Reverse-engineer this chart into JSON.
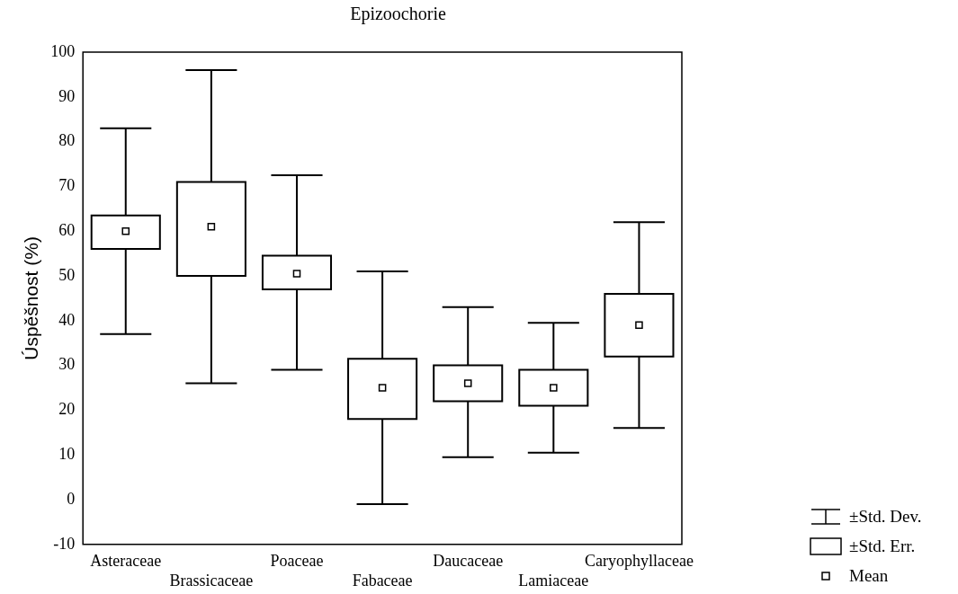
{
  "chart_data": {
    "type": "box",
    "title": "Epizoochorie",
    "ylabel": "Úspěšnost (%)",
    "categories": [
      "Asteraceae",
      "Brassicaceae",
      "Poaceae",
      "Fabaceae",
      "Daucaceae",
      "Lamiaceae",
      "Caryophyllaceae"
    ],
    "boxes": [
      {
        "low": 37,
        "q1": 56,
        "q3": 63.5,
        "high": 83,
        "mean": 60
      },
      {
        "low": 26,
        "q1": 50,
        "q3": 71,
        "high": 96,
        "mean": 61
      },
      {
        "low": 29,
        "q1": 47,
        "q3": 54.5,
        "high": 72.5,
        "mean": 50.5
      },
      {
        "low": -1,
        "q1": 18,
        "q3": 31.5,
        "high": 51,
        "mean": 25
      },
      {
        "low": 9.5,
        "q1": 22,
        "q3": 30,
        "high": 43,
        "mean": 26
      },
      {
        "low": 10.5,
        "q1": 21,
        "q3": 29,
        "high": 39.5,
        "mean": 25
      },
      {
        "low": 16,
        "q1": 32,
        "q3": 46,
        "high": 62,
        "mean": 39
      }
    ],
    "color": "#000000",
    "ylim": [
      -10,
      100
    ],
    "yticks": [
      -10,
      0,
      10,
      20,
      30,
      40,
      50,
      60,
      70,
      80,
      90,
      100
    ],
    "grid": false,
    "marker": "square",
    "annotations": [
      "±Std. Dev.",
      "±Std. Err.",
      "Mean"
    ]
  }
}
